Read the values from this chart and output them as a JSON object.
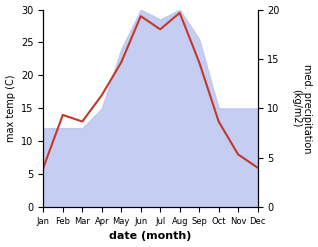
{
  "months": [
    "Jan",
    "Feb",
    "Mar",
    "Apr",
    "May",
    "Jun",
    "Jul",
    "Aug",
    "Sep",
    "Oct",
    "Nov",
    "Dec"
  ],
  "temperature": [
    6.0,
    14.0,
    13.0,
    17.0,
    22.0,
    29.0,
    27.0,
    29.5,
    22.0,
    13.0,
    8.0,
    6.0
  ],
  "precipitation": [
    8.0,
    8.0,
    8.0,
    10.0,
    16.0,
    20.0,
    19.0,
    20.0,
    17.0,
    10.0,
    10.0,
    10.0
  ],
  "temp_color": "#c0392b",
  "precip_fill_color": "#bcc5f0",
  "xlabel": "date (month)",
  "ylabel_left": "max temp (C)",
  "ylabel_right": "med. precipitation\n(kg/m2)",
  "ylim_left": [
    0,
    30
  ],
  "ylim_right": [
    0,
    20
  ],
  "yticks_left": [
    0,
    5,
    10,
    15,
    20,
    25,
    30
  ],
  "yticks_right": [
    0,
    5,
    10,
    15,
    20
  ],
  "background_color": "#ffffff",
  "temp_linewidth": 1.5
}
